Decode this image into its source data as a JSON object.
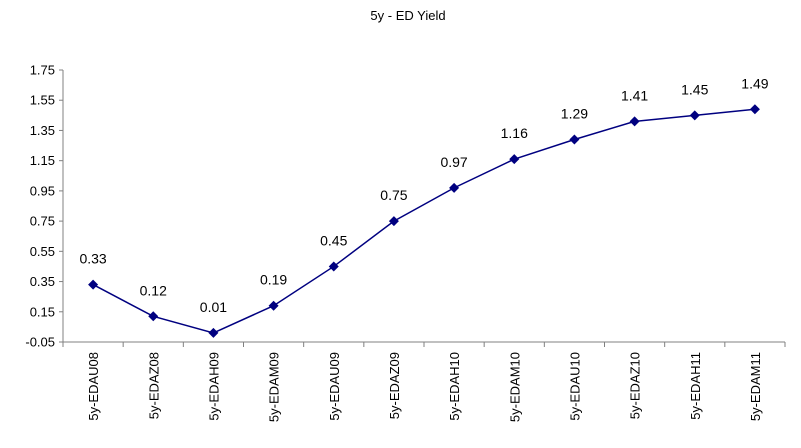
{
  "chart_data": {
    "type": "line",
    "title": "5y - ED Yield",
    "xlabel": "",
    "ylabel": "",
    "categories": [
      "5y-EDAU08",
      "5y-EDAZ08",
      "5y-EDAH09",
      "5y-EDAM09",
      "5y-EDAU09",
      "5y-EDAZ09",
      "5y-EDAH10",
      "5y-EDAM10",
      "5y-EDAU10",
      "5y-EDAZ10",
      "5y-EDAH11",
      "5y-EDAM11"
    ],
    "series": [
      {
        "values": [
          0.33,
          0.12,
          0.01,
          0.19,
          0.45,
          0.75,
          0.97,
          1.16,
          1.29,
          1.41,
          1.45,
          1.49
        ],
        "labels": [
          "0.33",
          "0.12",
          "0.01",
          "0.19",
          "0.45",
          "0.75",
          "0.97",
          "1.16",
          "1.29",
          "1.41",
          "1.45",
          "1.49"
        ]
      }
    ],
    "yticks": [
      "-0.05",
      "0.15",
      "0.35",
      "0.55",
      "0.75",
      "0.95",
      "1.15",
      "1.35",
      "1.55",
      "1.75"
    ],
    "ylim": [
      -0.05,
      1.75
    ],
    "grid": false,
    "legend": "none",
    "colors": {
      "line": "#000080",
      "marker": "#000080",
      "axis": "#808080"
    }
  }
}
